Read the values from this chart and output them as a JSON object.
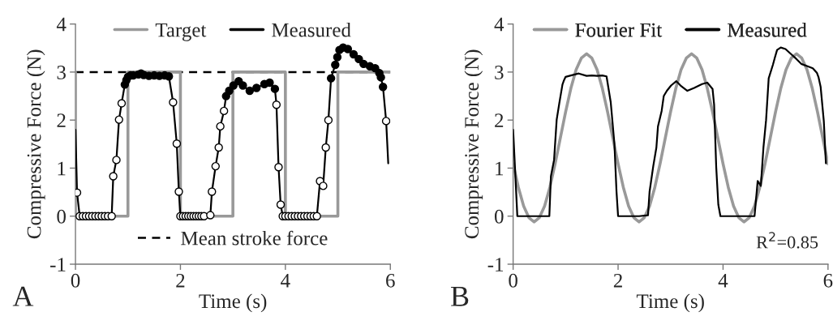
{
  "chart_data": [
    {
      "type": "line",
      "xlabel": "Time (s)",
      "ylabel": "Compressive Force (N)",
      "xlim": [
        0,
        6
      ],
      "xticks": [
        0,
        2,
        4,
        6
      ],
      "ylim": [
        -1,
        4
      ],
      "yticks": [
        -1,
        0,
        1,
        2,
        3,
        4
      ],
      "legend": "top",
      "grid": false,
      "series": [
        {
          "name": "Target",
          "color": "#999999",
          "marker": "none",
          "x": [
            0,
            0,
            1,
            1,
            2,
            2,
            3,
            3,
            4,
            4,
            5,
            5,
            6
          ],
          "values": [
            3,
            0,
            0,
            3,
            3,
            0,
            0,
            3,
            3,
            0,
            0,
            3,
            3
          ]
        },
        {
          "name": "Measured",
          "color": "#000000",
          "marker": "circle",
          "x": [
            0,
            0.03,
            0.08,
            0.14,
            0.2,
            0.26,
            0.32,
            0.38,
            0.44,
            0.5,
            0.56,
            0.62,
            0.69,
            0.72,
            0.78,
            0.83,
            0.88,
            0.94,
            0.97,
            1.0,
            1.05,
            1.1,
            1.2,
            1.25,
            1.3,
            1.4,
            1.5,
            1.6,
            1.7,
            1.78,
            1.86,
            1.93,
            1.97,
            2.0,
            2.05,
            2.1,
            2.15,
            2.2,
            2.25,
            2.3,
            2.35,
            2.4,
            2.45,
            2.57,
            2.6,
            2.67,
            2.73,
            2.76,
            2.83,
            2.87,
            2.93,
            3.01,
            3.11,
            3.19,
            3.32,
            3.45,
            3.6,
            3.7,
            3.8,
            3.83,
            3.87,
            3.91,
            3.95,
            4.0,
            4.06,
            4.12,
            4.18,
            4.24,
            4.3,
            4.36,
            4.42,
            4.48,
            4.54,
            4.6,
            4.66,
            4.72,
            4.77,
            4.82,
            4.87,
            4.95,
            4.99,
            5.03,
            5.1,
            5.19,
            5.3,
            5.4,
            5.49,
            5.61,
            5.71,
            5.79,
            5.82,
            5.86,
            5.92,
            5.96
          ],
          "values": [
            1.8,
            0.49,
            0,
            0,
            0,
            0,
            0,
            0,
            0,
            0,
            0,
            0,
            0,
            0.83,
            1.17,
            2.01,
            2.35,
            2.74,
            2.83,
            2.9,
            2.93,
            2.93,
            2.95,
            2.97,
            2.94,
            2.92,
            2.93,
            2.92,
            2.93,
            2.91,
            2.37,
            1.51,
            0.51,
            0,
            0,
            0,
            0,
            0,
            0,
            0,
            0,
            0,
            0,
            0.02,
            0.51,
            1.04,
            1.43,
            1.87,
            2.19,
            2.5,
            2.61,
            2.72,
            2.81,
            2.72,
            2.61,
            2.67,
            2.75,
            2.78,
            2.65,
            2.32,
            1.02,
            0.24,
            0,
            0,
            0,
            0,
            0,
            0,
            0,
            0,
            0,
            0,
            0,
            0,
            0.73,
            0.63,
            1.43,
            2.0,
            2.87,
            3.15,
            3.31,
            3.46,
            3.51,
            3.48,
            3.37,
            3.27,
            3.17,
            3.12,
            3.08,
            2.98,
            2.89,
            2.69,
            1.98,
            1.1
          ],
          "colors": [
            null,
            "#ffffff",
            "#ffffff",
            "#ffffff",
            "#ffffff",
            "#ffffff",
            "#ffffff",
            "#ffffff",
            "#ffffff",
            "#ffffff",
            "#ffffff",
            "#ffffff",
            "#ffffff",
            "#ffffff",
            "#ffffff",
            "#ffffff",
            "#ffffff",
            "#000000",
            "#000000",
            "#000000",
            "#000000",
            "#000000",
            "#000000",
            "#000000",
            "#000000",
            "#000000",
            "#000000",
            "#000000",
            "#000000",
            "#000000",
            "#ffffff",
            "#ffffff",
            "#ffffff",
            "#ffffff",
            "#ffffff",
            "#ffffff",
            "#ffffff",
            "#ffffff",
            "#ffffff",
            "#ffffff",
            "#ffffff",
            "#ffffff",
            "#ffffff",
            "#ffffff",
            "#ffffff",
            "#ffffff",
            "#ffffff",
            "#ffffff",
            "#ffffff",
            "#000000",
            "#000000",
            "#000000",
            "#000000",
            "#000000",
            "#000000",
            "#000000",
            "#000000",
            "#000000",
            "#000000",
            "#ffffff",
            "#ffffff",
            "#ffffff",
            "#ffffff",
            "#ffffff",
            "#ffffff",
            "#ffffff",
            "#ffffff",
            "#ffffff",
            "#ffffff",
            "#ffffff",
            "#ffffff",
            "#ffffff",
            "#ffffff",
            "#ffffff",
            "#ffffff",
            "#ffffff",
            "#ffffff",
            "#ffffff",
            "#000000",
            "#000000",
            "#000000",
            "#000000",
            "#000000",
            "#000000",
            "#000000",
            "#000000",
            "#000000",
            "#000000",
            "#000000",
            "#000000",
            "#000000",
            "#000000",
            "#ffffff",
            null
          ]
        }
      ],
      "ref_lines": [
        {
          "axis": "y",
          "value": 3,
          "label": "Mean stroke force",
          "color": "#000000",
          "line_style": "dashed"
        }
      ],
      "annotations": [
        "A"
      ]
    },
    {
      "type": "line",
      "xlabel": "Time (s)",
      "ylabel": "Compressive Force (N)",
      "xlim": [
        0,
        6
      ],
      "xticks": [
        0,
        2,
        4,
        6
      ],
      "ylim": [
        -1,
        4
      ],
      "yticks": [
        -1,
        0,
        1,
        2,
        3,
        4
      ],
      "legend": "top",
      "grid": false,
      "series": [
        {
          "name": "Fourier Fit",
          "color": "#999999",
          "marker": "none",
          "x": [
            0,
            0.1,
            0.2,
            0.3,
            0.4,
            0.5,
            0.6,
            0.7,
            0.8,
            0.9,
            1.0,
            1.1,
            1.2,
            1.3,
            1.4,
            1.5,
            1.6,
            1.7,
            1.8,
            1.9,
            2.0,
            2.1,
            2.2,
            2.3,
            2.4,
            2.5,
            2.6,
            2.7,
            2.8,
            2.9,
            3.0,
            3.1,
            3.2,
            3.3,
            3.4,
            3.5,
            3.6,
            3.7,
            3.8,
            3.9,
            4.0,
            4.1,
            4.2,
            4.3,
            4.4,
            4.5,
            4.6,
            4.7,
            4.8,
            4.9,
            5.0,
            5.1,
            5.2,
            5.3,
            5.4,
            5.5,
            5.6,
            5.7,
            5.8,
            5.9,
            6.0
          ],
          "values": [
            1.09,
            0.6,
            0.21,
            -0.03,
            -0.12,
            -0.03,
            0.21,
            0.6,
            1.09,
            1.63,
            2.17,
            2.66,
            3.05,
            3.29,
            3.38,
            3.29,
            3.05,
            2.66,
            2.17,
            1.63,
            1.09,
            0.6,
            0.21,
            -0.03,
            -0.12,
            -0.03,
            0.21,
            0.6,
            1.09,
            1.63,
            2.17,
            2.66,
            3.05,
            3.29,
            3.38,
            3.29,
            3.05,
            2.66,
            2.17,
            1.63,
            1.09,
            0.6,
            0.21,
            -0.03,
            -0.12,
            -0.03,
            0.21,
            0.6,
            1.09,
            1.63,
            2.17,
            2.66,
            3.05,
            3.29,
            3.38,
            3.29,
            3.05,
            2.66,
            2.17,
            1.63,
            1.09
          ]
        },
        {
          "name": "Measured",
          "color": "#000000",
          "marker": "none",
          "x": [
            0,
            0.08,
            0.14,
            0.2,
            0.3,
            0.4,
            0.5,
            0.6,
            0.69,
            0.72,
            0.78,
            0.83,
            0.88,
            0.94,
            0.97,
            1.0,
            1.1,
            1.25,
            1.4,
            1.5,
            1.6,
            1.7,
            1.78,
            1.86,
            1.93,
            1.97,
            2.0,
            2.2,
            2.4,
            2.57,
            2.6,
            2.67,
            2.73,
            2.76,
            2.83,
            2.87,
            2.93,
            3.01,
            3.11,
            3.19,
            3.32,
            3.45,
            3.6,
            3.7,
            3.8,
            3.83,
            3.87,
            3.91,
            3.95,
            4.2,
            4.4,
            4.6,
            4.66,
            4.72,
            4.77,
            4.82,
            4.87,
            4.95,
            4.99,
            5.03,
            5.1,
            5.19,
            5.3,
            5.4,
            5.49,
            5.61,
            5.71,
            5.79,
            5.82,
            5.86,
            5.92,
            5.96
          ],
          "values": [
            1.8,
            0,
            0,
            0,
            0,
            0,
            0,
            0,
            0,
            0.83,
            1.17,
            2.01,
            2.35,
            2.74,
            2.83,
            2.9,
            2.93,
            2.97,
            2.92,
            2.93,
            2.92,
            2.93,
            2.91,
            2.37,
            1.51,
            0.51,
            0,
            0,
            0,
            0.02,
            0.51,
            1.04,
            1.43,
            1.87,
            2.19,
            2.5,
            2.61,
            2.72,
            2.81,
            2.72,
            2.61,
            2.67,
            2.75,
            2.78,
            2.65,
            2.32,
            1.02,
            0.24,
            0,
            0,
            0,
            0,
            0.73,
            0.63,
            1.43,
            2.0,
            2.87,
            3.15,
            3.31,
            3.46,
            3.51,
            3.48,
            3.37,
            3.27,
            3.17,
            3.12,
            3.08,
            2.98,
            2.89,
            2.69,
            1.98,
            1.1
          ]
        }
      ],
      "annotations": [
        "B",
        "R$^{2}$=0.85"
      ]
    }
  ]
}
